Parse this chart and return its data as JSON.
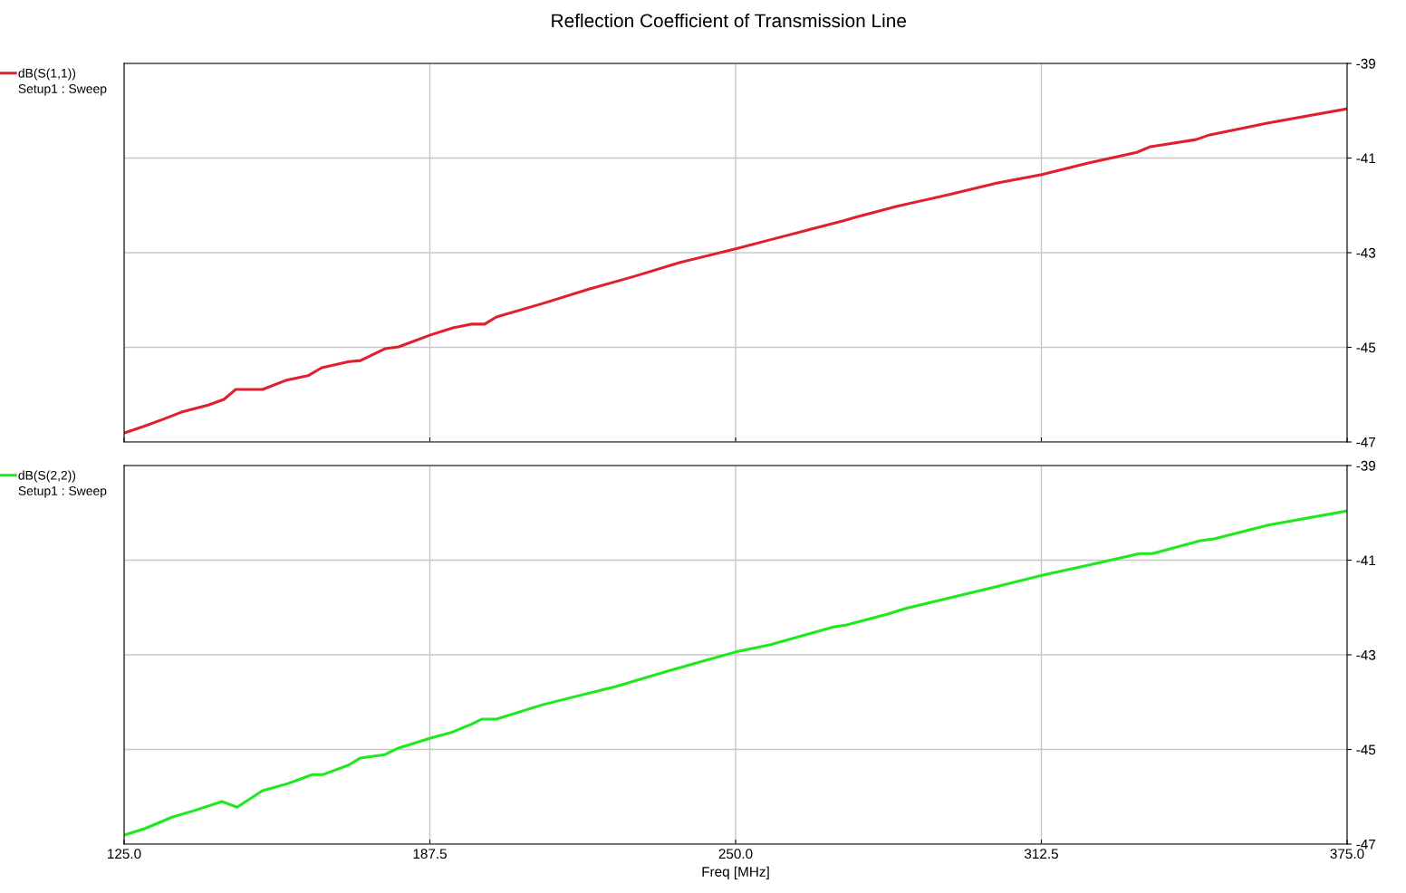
{
  "chart_data": [
    {
      "type": "line",
      "title": "Reflection Coefficient of Transmission Line",
      "xlim": [
        125,
        375
      ],
      "xticks": [
        125,
        187.5,
        250,
        312.5,
        375
      ],
      "ylim": [
        -47,
        -39
      ],
      "yticks": [
        -47,
        -45,
        -43,
        -41,
        -39
      ],
      "tick_labels": "y",
      "grid": true,
      "legend": "left",
      "annotations": [
        "Setup1 : Sweep"
      ],
      "x": [
        125,
        129.3,
        133.0,
        136.7,
        142.2,
        145.4,
        147.8,
        150.6,
        153.3,
        158.0,
        162.6,
        165.4,
        171.0,
        173.3,
        178.3,
        181.1,
        187.6,
        192.2,
        195.9,
        198.7,
        201.1,
        210.7,
        220.0,
        229.3,
        238.5,
        250.0,
        257.0,
        266.3,
        271.9,
        274.6,
        283.0,
        294.1,
        303.3,
        312.6,
        321.9,
        332.0,
        334.8,
        344.1,
        346.9,
        358.9,
        375
      ],
      "series": [
        {
          "name": "dB(S(1,1))",
          "color": "#e0202e",
          "values": [
            -46.81,
            -46.66,
            -46.52,
            -46.37,
            -46.22,
            -46.1,
            -45.89,
            -45.89,
            -45.89,
            -45.7,
            -45.6,
            -45.43,
            -45.3,
            -45.28,
            -45.03,
            -44.99,
            -44.74,
            -44.59,
            -44.51,
            -44.51,
            -44.36,
            -44.07,
            -43.77,
            -43.5,
            -43.21,
            -42.92,
            -42.73,
            -42.48,
            -42.33,
            -42.25,
            -42.02,
            -41.76,
            -41.53,
            -41.35,
            -41.11,
            -40.88,
            -40.76,
            -40.61,
            -40.51,
            -40.26,
            -39.96
          ]
        }
      ]
    },
    {
      "type": "line",
      "xlabel": "Freq [MHz]",
      "xlim": [
        125,
        375
      ],
      "xticks": [
        {
          "value": 125,
          "label": "125.0"
        },
        {
          "value": 187.5,
          "label": "187.5"
        },
        {
          "value": 250,
          "label": "250.0"
        },
        {
          "value": 312.5,
          "label": "312.5"
        },
        {
          "value": 375,
          "label": "375.0"
        }
      ],
      "ylim": [
        -47,
        -39
      ],
      "yticks": [
        -47,
        -45,
        -43,
        -41,
        -39
      ],
      "grid": true,
      "legend": "left",
      "annotations": [
        "Setup1 : Sweep"
      ],
      "x": [
        125,
        129.3,
        134.8,
        139.4,
        145.0,
        148.1,
        153.3,
        158.5,
        163.5,
        165.7,
        170.9,
        173.3,
        178.3,
        181.1,
        187.6,
        192.2,
        195.9,
        198.1,
        201.1,
        210.7,
        225.5,
        236.6,
        250.0,
        257.0,
        270.0,
        272.7,
        281.1,
        284.8,
        303.3,
        312.6,
        321.9,
        332.6,
        335.2,
        345.0,
        347.8,
        358.9,
        375
      ],
      "series": [
        {
          "name": "dB(S(2,2))",
          "color": "#1ee81e",
          "values": [
            -46.81,
            -46.67,
            -46.43,
            -46.29,
            -46.1,
            -46.22,
            -45.87,
            -45.72,
            -45.53,
            -45.53,
            -45.33,
            -45.18,
            -45.11,
            -44.97,
            -44.76,
            -44.63,
            -44.47,
            -44.36,
            -44.36,
            -44.05,
            -43.67,
            -43.33,
            -42.94,
            -42.79,
            -42.41,
            -42.37,
            -42.14,
            -42.02,
            -41.56,
            -41.32,
            -41.11,
            -40.86,
            -40.86,
            -40.59,
            -40.55,
            -40.26,
            -39.96
          ]
        }
      ]
    }
  ]
}
